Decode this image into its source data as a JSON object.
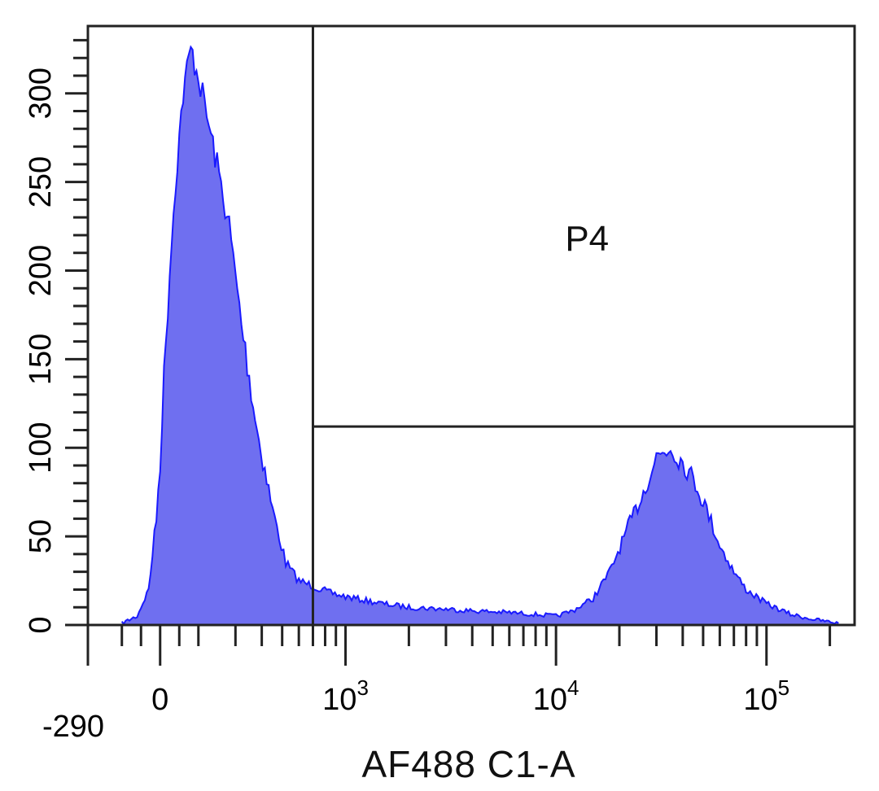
{
  "chart_data": {
    "type": "area",
    "title": "",
    "xlabel": "AF488 C1-A",
    "ylabel": "",
    "x_scale": "biexponential",
    "x_min_label": "-290",
    "x_tick_labels": [
      {
        "value": 0,
        "base": "0",
        "exp": ""
      },
      {
        "value": 1000,
        "base": "10",
        "exp": "3"
      },
      {
        "value": 10000,
        "base": "10",
        "exp": "4"
      },
      {
        "value": 100000,
        "base": "10",
        "exp": "5"
      }
    ],
    "y_tick_labels": [
      "0",
      "50",
      "100",
      "150",
      "200",
      "250",
      "300"
    ],
    "y_tick_values": [
      0,
      50,
      100,
      150,
      200,
      250,
      300
    ],
    "ylim": [
      0,
      338
    ],
    "xlim": [
      -290,
      262144
    ],
    "fill_color": "#6f6ff0",
    "line_color": "#1a1aff",
    "gate": {
      "name": "P4",
      "x_start": 700,
      "x_end": 262144,
      "level": 112
    },
    "series": [
      {
        "x": [
          -200,
          -120,
          -60,
          -20,
          0,
          20,
          50,
          80,
          120,
          160,
          200,
          240,
          280,
          320,
          380,
          450,
          520,
          600,
          700,
          850,
          1000,
          1500,
          2000,
          3000,
          4000,
          6000,
          8000,
          10000,
          12000,
          15000,
          18000,
          22000,
          26000,
          30000,
          35000,
          40000,
          46000,
          52000,
          60000,
          70000,
          80000,
          100000,
          130000,
          170000,
          220000
        ],
        "y": [
          1,
          5,
          20,
          60,
          92,
          140,
          200,
          250,
          300,
          325,
          310,
          265,
          225,
          170,
          110,
          65,
          35,
          25,
          22,
          18,
          16,
          12,
          10,
          9,
          8,
          7,
          6,
          5,
          8,
          15,
          30,
          55,
          75,
          95,
          100,
          92,
          80,
          65,
          45,
          30,
          20,
          12,
          6,
          3,
          1
        ]
      }
    ]
  }
}
